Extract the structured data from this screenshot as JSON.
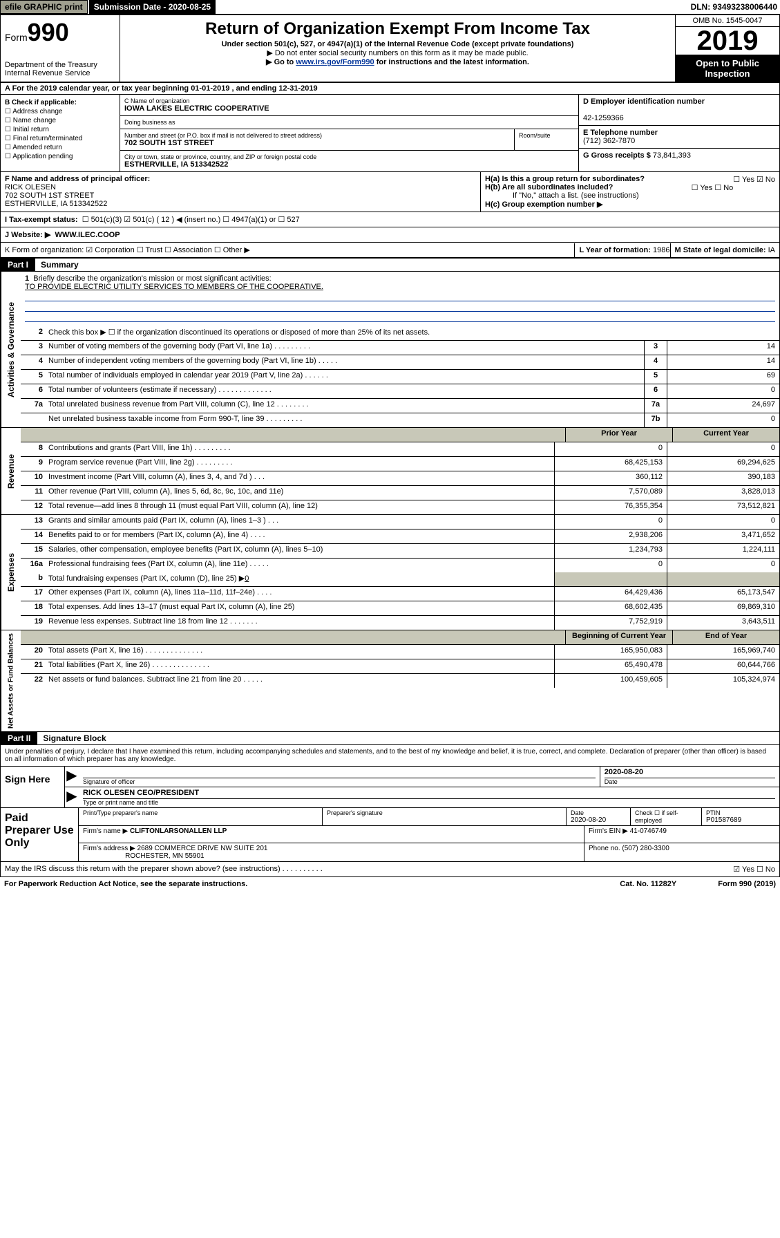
{
  "top": {
    "efile": "efile GRAPHIC print",
    "submission_label": "Submission Date - 2020-08-25",
    "dln": "DLN: 93493238006440"
  },
  "header": {
    "form_prefix": "Form",
    "form_number": "990",
    "dept": "Department of the Treasury",
    "irs": "Internal Revenue Service",
    "title": "Return of Organization Exempt From Income Tax",
    "sub": "Under section 501(c), 527, or 4947(a)(1) of the Internal Revenue Code (except private foundations)",
    "note1": "▶ Do not enter social security numbers on this form as it may be made public.",
    "note2_pre": "▶ Go to ",
    "note2_link": "www.irs.gov/Form990",
    "note2_post": " for instructions and the latest information.",
    "omb": "OMB No. 1545-0047",
    "year": "2019",
    "inspect1": "Open to Public",
    "inspect2": "Inspection"
  },
  "blockA": "A For the 2019 calendar year, or tax year beginning 01-01-2019     , and ending 12-31-2019",
  "blockB": {
    "label": "B Check if applicable:",
    "opts": [
      "☐ Address change",
      "☐ Name change",
      "☐ Initial return",
      "☐ Final return/terminated",
      "☐ Amended return",
      "☐ Application pending"
    ]
  },
  "blockC": {
    "name_label": "C Name of organization",
    "name": "IOWA LAKES ELECTRIC COOPERATIVE",
    "dba_label": "Doing business as",
    "dba": "",
    "addr_label": "Number and street (or P.O. box if mail is not delivered to street address)",
    "addr": "702 SOUTH 1ST STREET",
    "room_label": "Room/suite",
    "city_label": "City or town, state or province, country, and ZIP or foreign postal code",
    "city": "ESTHERVILLE, IA  513342522"
  },
  "blockD": {
    "label": "D Employer identification number",
    "val": "42-1259366"
  },
  "blockE": {
    "label": "E Telephone number",
    "val": "(712) 362-7870"
  },
  "blockG": {
    "label": "G Gross receipts $",
    "val": "73,841,393"
  },
  "blockF": {
    "label": "F Name and address of principal officer:",
    "name": "RICK OLESEN",
    "addr": "702 SOUTH 1ST STREET",
    "city": "ESTHERVILLE, IA  513342522"
  },
  "blockH": {
    "a": "H(a)  Is this a group return for subordinates?",
    "a_ans": "☐ Yes ☑ No",
    "b": "H(b)  Are all subordinates included?",
    "b_ans": "☐ Yes ☐ No",
    "b_note": "If \"No,\" attach a list. (see instructions)",
    "c": "H(c)  Group exemption number ▶"
  },
  "taxExempt": {
    "label": "I   Tax-exempt status:",
    "opts": "☐ 501(c)(3)   ☑ 501(c) ( 12 ) ◀ (insert no.)   ☐ 4947(a)(1) or   ☐ 527"
  },
  "website": {
    "label": "J   Website: ▶",
    "val": "WWW.ILEC.COOP"
  },
  "blockK": "K Form of organization:  ☑ Corporation  ☐ Trust  ☐ Association  ☐ Other ▶",
  "blockL": {
    "label": "L Year of formation:",
    "val": "1986"
  },
  "blockM": {
    "label": "M State of legal domicile:",
    "val": "IA"
  },
  "partI": {
    "header": "Part I",
    "title": "Summary"
  },
  "gov": {
    "tab": "Activities & Governance",
    "l1": "Briefly describe the organization's mission or most significant activities:",
    "l1_val": "TO PROVIDE ELECTRIC UTILITY SERVICES TO MEMBERS OF THE COOPERATIVE.",
    "l2": "Check this box ▶ ☐  if the organization discontinued its operations or disposed of more than 25% of its net assets.",
    "l3": "Number of voting members of the governing body (Part VI, line 1a)    .    .    .    .    .    .    .    .    .",
    "l3v": "14",
    "l4": "Number of independent voting members of the governing body (Part VI, line 1b)    .    .    .    .    .",
    "l4v": "14",
    "l5": "Total number of individuals employed in calendar year 2019 (Part V, line 2a)    .    .    .    .    .    .",
    "l5v": "69",
    "l6": "Total number of volunteers (estimate if necessary)    .    .    .    .    .    .    .    .    .    .    .    .    .",
    "l6v": "0",
    "l7a": "Total unrelated business revenue from Part VIII, column (C), line 12    .    .    .    .    .    .    .    .",
    "l7av": "24,697",
    "l7b": "Net unrelated business taxable income from Form 990-T, line 39    .    .    .    .    .    .    .    .    .",
    "l7bv": "0"
  },
  "colHeaders": {
    "prior": "Prior Year",
    "current": "Current Year"
  },
  "rev": {
    "tab": "Revenue",
    "rows": [
      {
        "n": "8",
        "t": "Contributions and grants (Part VIII, line 1h)    .    .    .    .    .    .    .    .    .",
        "p": "0",
        "c": "0"
      },
      {
        "n": "9",
        "t": "Program service revenue (Part VIII, line 2g)    .    .    .    .    .    .    .    .    .",
        "p": "68,425,153",
        "c": "69,294,625"
      },
      {
        "n": "10",
        "t": "Investment income (Part VIII, column (A), lines 3, 4, and 7d )    .    .    .",
        "p": "360,112",
        "c": "390,183"
      },
      {
        "n": "11",
        "t": "Other revenue (Part VIII, column (A), lines 5, 6d, 8c, 9c, 10c, and 11e)",
        "p": "7,570,089",
        "c": "3,828,013"
      },
      {
        "n": "12",
        "t": "Total revenue—add lines 8 through 11 (must equal Part VIII, column (A), line 12)",
        "p": "76,355,354",
        "c": "73,512,821"
      }
    ]
  },
  "exp": {
    "tab": "Expenses",
    "rows": [
      {
        "n": "13",
        "t": "Grants and similar amounts paid (Part IX, column (A), lines 1–3 )    .    .    .",
        "p": "0",
        "c": "0"
      },
      {
        "n": "14",
        "t": "Benefits paid to or for members (Part IX, column (A), line 4)    .    .    .    .",
        "p": "2,938,206",
        "c": "3,471,652"
      },
      {
        "n": "15",
        "t": "Salaries, other compensation, employee benefits (Part IX, column (A), lines 5–10)",
        "p": "1,234,793",
        "c": "1,224,111"
      },
      {
        "n": "16a",
        "t": "Professional fundraising fees (Part IX, column (A), line 11e)    .    .    .    .    .",
        "p": "0",
        "c": "0"
      }
    ],
    "l16b_t": "Total fundraising expenses (Part IX, column (D), line 25) ▶",
    "l16b_v": "0",
    "rows2": [
      {
        "n": "17",
        "t": "Other expenses (Part IX, column (A), lines 11a–11d, 11f–24e)    .    .    .    .",
        "p": "64,429,436",
        "c": "65,173,547"
      },
      {
        "n": "18",
        "t": "Total expenses. Add lines 13–17 (must equal Part IX, column (A), line 25)",
        "p": "68,602,435",
        "c": "69,869,310"
      },
      {
        "n": "19",
        "t": "Revenue less expenses. Subtract line 18 from line 12    .    .    .    .    .    .    .",
        "p": "7,752,919",
        "c": "3,643,511"
      }
    ]
  },
  "net": {
    "tab": "Net Assets or Fund Balances",
    "h_prior": "Beginning of Current Year",
    "h_curr": "End of Year",
    "rows": [
      {
        "n": "20",
        "t": "Total assets (Part X, line 16)    .    .    .    .    .    .    .    .    .    .    .    .    .    .",
        "p": "165,950,083",
        "c": "165,969,740"
      },
      {
        "n": "21",
        "t": "Total liabilities (Part X, line 26)    .    .    .    .    .    .    .    .    .    .    .    .    .    .",
        "p": "65,490,478",
        "c": "60,644,766"
      },
      {
        "n": "22",
        "t": "Net assets or fund balances. Subtract line 21 from line 20    .    .    .    .    .",
        "p": "100,459,605",
        "c": "105,324,974"
      }
    ]
  },
  "partII": {
    "header": "Part II",
    "title": "Signature Block"
  },
  "perjury": "Under penalties of perjury, I declare that I have examined this return, including accompanying schedules and statements, and to the best of my knowledge and belief, it is true, correct, and complete. Declaration of preparer (other than officer) is based on all information of which preparer has any knowledge.",
  "sign": {
    "label": "Sign Here",
    "sig_date": "2020-08-20",
    "sig_lbl": "Signature of officer",
    "date_lbl": "Date",
    "name": "RICK OLESEN  CEO/PRESIDENT",
    "name_lbl": "Type or print name and title"
  },
  "paid": {
    "label": "Paid Preparer Use Only",
    "h1": "Print/Type preparer's name",
    "h2": "Preparer's signature",
    "h3": "Date",
    "h3v": "2020-08-20",
    "h4": "Check ☐ if self-employed",
    "h5": "PTIN",
    "h5v": "P01587689",
    "firm_lbl": "Firm's name      ▶",
    "firm": "CLIFTONLARSONALLEN LLP",
    "ein_lbl": "Firm's EIN ▶",
    "ein": "41-0746749",
    "addr_lbl": "Firm's address ▶",
    "addr": "2689 COMMERCE DRIVE NW SUITE 201",
    "addr2": "ROCHESTER, MN  55901",
    "phone_lbl": "Phone no.",
    "phone": "(507) 280-3300"
  },
  "discuss": {
    "q": "May the IRS discuss this return with the preparer shown above? (see instructions)    .    .    .    .    .    .    .    .    .    .",
    "ans": "☑ Yes   ☐ No"
  },
  "footer": {
    "left": "For Paperwork Reduction Act Notice, see the separate instructions.",
    "mid": "Cat. No. 11282Y",
    "right": "Form 990 (2019)"
  }
}
